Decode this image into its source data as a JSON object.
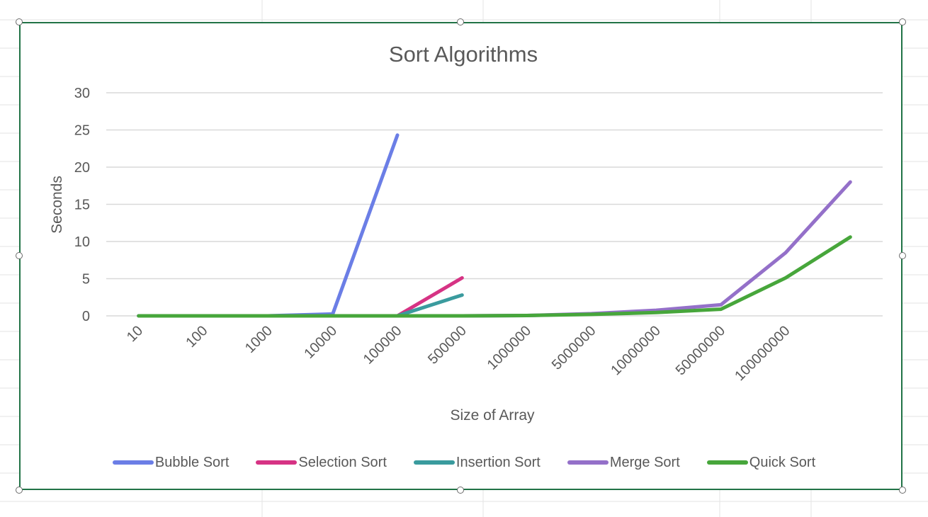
{
  "chart_data": {
    "type": "line",
    "title": "Sort Algorithms",
    "xlabel": "Size of Array",
    "ylabel": "Seconds",
    "categories": [
      "10",
      "100",
      "1000",
      "10000",
      "100000",
      "500000",
      "1000000",
      "5000000",
      "10000000",
      "50000000",
      "100000000",
      ""
    ],
    "ylim": [
      0,
      30
    ],
    "yticks": [
      0,
      5,
      10,
      15,
      20,
      25,
      30
    ],
    "grid": true,
    "legend_position": "bottom",
    "series": [
      {
        "name": "Bubble Sort",
        "color": "#6b7ee6",
        "values": [
          0,
          0,
          0,
          0.25,
          24.3,
          null,
          null,
          null,
          null,
          null,
          null,
          null
        ]
      },
      {
        "name": "Selection Sort",
        "color": "#d63384",
        "values": [
          null,
          null,
          null,
          null,
          0,
          5.1,
          null,
          null,
          null,
          null,
          null,
          null
        ]
      },
      {
        "name": "Insertion Sort",
        "color": "#3a9b9e",
        "values": [
          null,
          null,
          null,
          null,
          0,
          2.8,
          null,
          null,
          null,
          null,
          null,
          null
        ]
      },
      {
        "name": "Merge Sort",
        "color": "#9470c9",
        "values": [
          0,
          0,
          0,
          0,
          0,
          0,
          0.05,
          0.3,
          0.75,
          1.5,
          8.5,
          18
        ]
      },
      {
        "name": "Quick Sort",
        "color": "#47a63b",
        "values": [
          0,
          0,
          0,
          0,
          0,
          0,
          0.05,
          0.2,
          0.45,
          0.9,
          5.1,
          10.6
        ]
      }
    ]
  }
}
